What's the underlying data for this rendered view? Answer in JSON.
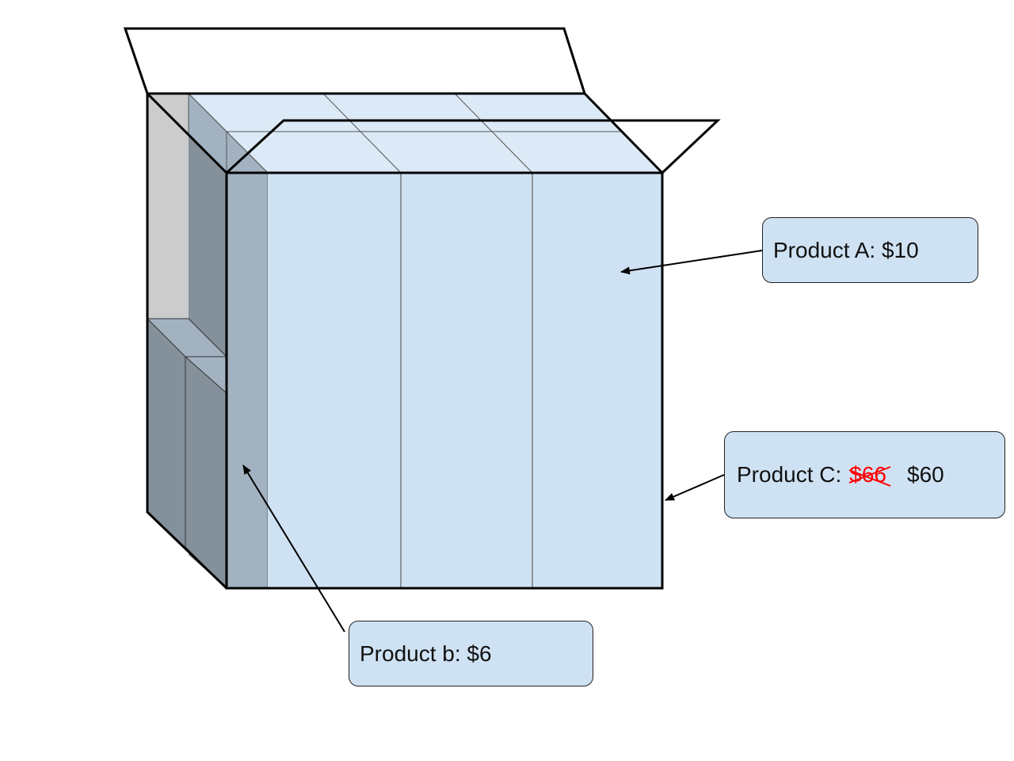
{
  "labels": {
    "product_a": "Product A: $10",
    "product_b": "Product b: $6",
    "product_c": {
      "prefix": "Product C:",
      "old_price": "$66",
      "new_price": "$60"
    }
  },
  "colors": {
    "box_front": "#cfe2f3",
    "box_top": "#dce9f6",
    "box_shadow": "#a3b2c1",
    "box_dark": "#84909a",
    "box_grey": "#cccccc",
    "outline": "#000000",
    "strike": "#ff0000"
  }
}
